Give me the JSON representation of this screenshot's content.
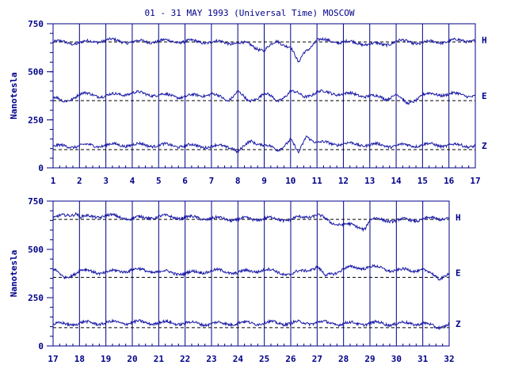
{
  "title": "01 - 31 MAY 1993 (Universal Time) MOSCOW",
  "ylabel": "Nanotesla",
  "colors": {
    "axis": "#000088",
    "trace": "#1a1aa6",
    "baseline": "#000000"
  },
  "chart_data": [
    {
      "type": "line",
      "panel": "top",
      "title": "01 - 31 MAY 1993 (Universal Time) MOSCOW",
      "xlabel": "",
      "ylabel": "Nanotesla",
      "xlim": [
        1,
        17
      ],
      "ylim": [
        0,
        750
      ],
      "x_ticks": [
        "1",
        "2",
        "3",
        "4",
        "5",
        "6",
        "7",
        "8",
        "9",
        "10",
        "11",
        "12",
        "13",
        "14",
        "15",
        "16",
        "17"
      ],
      "y_ticks": [
        "0",
        "250",
        "500",
        "750"
      ],
      "grid": "vertical day lines",
      "series": [
        {
          "name": "H",
          "baseline": 655,
          "x": [
            1,
            2,
            3,
            4,
            5,
            6,
            7,
            8,
            8.5,
            9,
            9.5,
            10,
            10.3,
            10.5,
            11,
            12,
            13,
            13.5,
            14,
            15,
            16,
            17
          ],
          "values": [
            655,
            650,
            665,
            655,
            660,
            658,
            655,
            650,
            640,
            610,
            660,
            630,
            540,
            600,
            665,
            655,
            645,
            640,
            660,
            650,
            660,
            665
          ]
        },
        {
          "name": "E",
          "baseline": 350,
          "x": [
            1,
            1.4,
            2,
            3,
            4,
            5,
            6,
            7,
            7.6,
            8,
            8.4,
            9,
            9.5,
            10,
            10.5,
            11,
            12,
            13,
            13.6,
            14,
            14.4,
            15,
            16,
            17
          ],
          "values": [
            370,
            340,
            385,
            375,
            390,
            380,
            370,
            385,
            350,
            400,
            340,
            390,
            345,
            400,
            370,
            395,
            385,
            375,
            360,
            385,
            330,
            380,
            385,
            375
          ]
        },
        {
          "name": "Z",
          "baseline": 95,
          "x": [
            1,
            2,
            3,
            4,
            5,
            6,
            7,
            7.8,
            8,
            8.5,
            9,
            9.5,
            10,
            10.3,
            10.6,
            11,
            12,
            13,
            14,
            15,
            16,
            17
          ],
          "values": [
            110,
            115,
            118,
            120,
            118,
            115,
            112,
            110,
            80,
            140,
            120,
            90,
            150,
            70,
            170,
            130,
            125,
            120,
            115,
            120,
            118,
            115
          ]
        }
      ]
    },
    {
      "type": "line",
      "panel": "bottom",
      "title": "",
      "xlabel": "",
      "ylabel": "Nanotesla",
      "xlim": [
        17,
        32
      ],
      "ylim": [
        0,
        750
      ],
      "x_ticks": [
        "17",
        "18",
        "19",
        "20",
        "21",
        "22",
        "23",
        "24",
        "25",
        "26",
        "27",
        "28",
        "29",
        "30",
        "31",
        "32"
      ],
      "y_ticks": [
        "0",
        "250",
        "500",
        "750"
      ],
      "grid": "vertical day lines",
      "series": [
        {
          "name": "H",
          "baseline": 655,
          "x": [
            17,
            17.9,
            18,
            19,
            20,
            21,
            22,
            23,
            24,
            25,
            26,
            27,
            27.5,
            28,
            28.8,
            29,
            30,
            31,
            32
          ],
          "values": [
            660,
            690,
            665,
            675,
            660,
            670,
            665,
            660,
            655,
            660,
            655,
            680,
            640,
            630,
            610,
            655,
            650,
            655,
            665
          ]
        },
        {
          "name": "E",
          "baseline": 355,
          "x": [
            17,
            17.4,
            18,
            19,
            20,
            21,
            22,
            23,
            24,
            25,
            26,
            27,
            27.3,
            28,
            29,
            30,
            31,
            31.6,
            32
          ],
          "values": [
            400,
            350,
            390,
            380,
            395,
            385,
            375,
            390,
            380,
            395,
            370,
            410,
            360,
            400,
            410,
            390,
            395,
            350,
            380
          ]
        },
        {
          "name": "Z",
          "baseline": 95,
          "x": [
            17,
            18,
            19,
            20,
            21,
            22,
            23,
            24,
            25,
            26,
            27,
            28,
            29,
            30,
            31,
            31.5,
            32
          ],
          "values": [
            110,
            118,
            120,
            122,
            120,
            118,
            115,
            118,
            120,
            118,
            122,
            115,
            118,
            115,
            118,
            95,
            115
          ]
        }
      ]
    }
  ]
}
